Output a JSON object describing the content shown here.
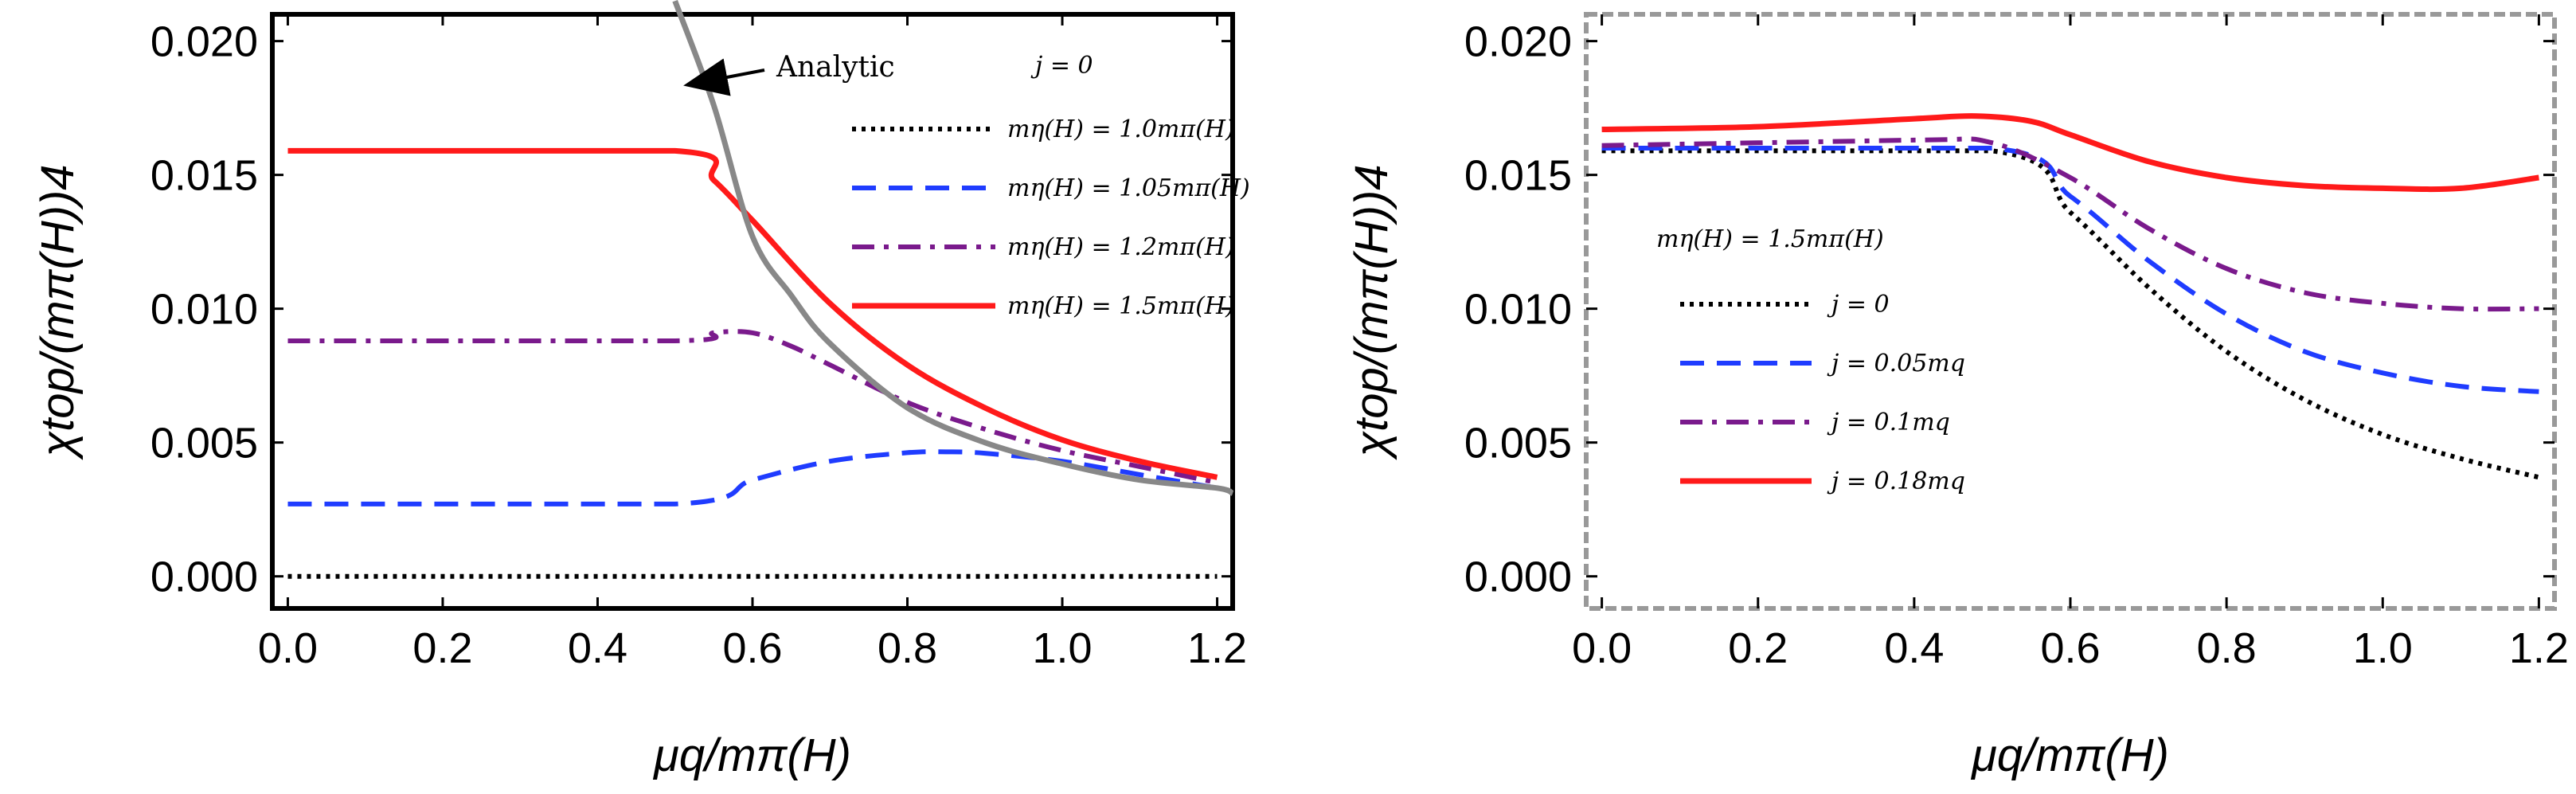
{
  "chart_data": [
    {
      "type": "line",
      "xlabel": "μq/mπ(H)",
      "ylabel": "χtop/(mπ(H))4",
      "xlim": [
        -0.02,
        1.22
      ],
      "ylim": [
        -0.0012,
        0.021
      ],
      "xticks": [
        "0.0",
        "0.2",
        "0.4",
        "0.6",
        "0.8",
        "1.0",
        "1.2"
      ],
      "yticks": [
        "0.000",
        "0.005",
        "0.010",
        "0.015",
        "0.020"
      ],
      "legend_title": "j = 0",
      "legend_position": "upper-right",
      "annotation": "Analytic",
      "series": [
        {
          "name": "mη(H) = 1.0mπ(H)",
          "color": "#000000",
          "dash": "dotted",
          "x": [
            0,
            0.5,
            1.2
          ],
          "y": [
            0.0,
            0.0,
            0.0
          ]
        },
        {
          "name": "mη(H) = 1.05mπ(H)",
          "color": "#1f3cff",
          "dash": "dashed",
          "x": [
            0,
            0.5,
            0.6,
            0.7,
            0.8,
            0.85,
            0.9,
            1.0,
            1.1,
            1.2
          ],
          "y": [
            0.0027,
            0.0027,
            0.0036,
            0.0043,
            0.00462,
            0.00465,
            0.0046,
            0.0043,
            0.0038,
            0.0033
          ]
        },
        {
          "name": "mη(H) = 1.2mπ(H)",
          "color": "#7a1a8c",
          "dash": "dashdot",
          "x": [
            0,
            0.5,
            0.55,
            0.6,
            0.65,
            0.7,
            0.8,
            0.9,
            1.0,
            1.1,
            1.2
          ],
          "y": [
            0.0088,
            0.0088,
            0.0091,
            0.0091,
            0.0086,
            0.0079,
            0.0065,
            0.0055,
            0.0047,
            0.0041,
            0.0035
          ]
        },
        {
          "name": "mη(H) = 1.5mπ(H)",
          "color": "#ff1a1a",
          "dash": "solid",
          "x": [
            0,
            0.5,
            0.55,
            0.6,
            0.7,
            0.8,
            0.9,
            1.0,
            1.1,
            1.2
          ],
          "y": [
            0.0159,
            0.0159,
            0.0148,
            0.0133,
            0.0102,
            0.0079,
            0.0063,
            0.0051,
            0.0043,
            0.0037
          ]
        },
        {
          "name": "Analytic",
          "color": "#888888",
          "dash": "solid",
          "x": [
            0.5,
            0.55,
            0.6,
            0.65,
            0.7,
            0.8,
            0.9,
            1.0,
            1.1,
            1.2,
            1.22
          ],
          "y": [
            0.0215,
            0.0176,
            0.0127,
            0.0105,
            0.0087,
            0.0063,
            0.005,
            0.0042,
            0.0036,
            0.0033,
            0.0031
          ]
        }
      ]
    },
    {
      "type": "line",
      "xlabel": "μq/mπ(H)",
      "ylabel": "χtop/(mπ(H))4",
      "xlim": [
        -0.02,
        1.22
      ],
      "ylim": [
        -0.0012,
        0.021
      ],
      "xticks": [
        "0.0",
        "0.2",
        "0.4",
        "0.6",
        "0.8",
        "1.0",
        "1.2"
      ],
      "yticks": [
        "0.000",
        "0.005",
        "0.010",
        "0.015",
        "0.020"
      ],
      "legend_title": "mη(H) = 1.5mπ(H)",
      "legend_position": "middle-left",
      "series": [
        {
          "name": "j = 0",
          "color": "#000000",
          "dash": "dotted",
          "x": [
            0,
            0.5,
            0.6,
            0.7,
            0.8,
            0.9,
            1.0,
            1.1,
            1.2
          ],
          "y": [
            0.0159,
            0.0159,
            0.0136,
            0.0108,
            0.0084,
            0.0066,
            0.0053,
            0.0044,
            0.0037
          ]
        },
        {
          "name": "j = 0.05mq",
          "color": "#1f3cff",
          "dash": "dashed",
          "x": [
            0,
            0.5,
            0.6,
            0.7,
            0.8,
            0.9,
            1.0,
            1.1,
            1.2
          ],
          "y": [
            0.016,
            0.016,
            0.0142,
            0.0118,
            0.0098,
            0.0084,
            0.0076,
            0.0071,
            0.0069
          ]
        },
        {
          "name": "j = 0.1mq",
          "color": "#7a1a8c",
          "dash": "dashdot",
          "x": [
            0,
            0.4,
            0.5,
            0.6,
            0.7,
            0.8,
            0.9,
            1.0,
            1.1,
            1.2
          ],
          "y": [
            0.0161,
            0.0163,
            0.0162,
            0.0149,
            0.013,
            0.0115,
            0.0106,
            0.0102,
            0.01,
            0.01
          ]
        },
        {
          "name": "j = 0.18mq",
          "color": "#ff1a1a",
          "dash": "solid",
          "x": [
            0,
            0.2,
            0.4,
            0.48,
            0.55,
            0.6,
            0.7,
            0.8,
            0.9,
            1.0,
            1.1,
            1.2
          ],
          "y": [
            0.0167,
            0.0168,
            0.0171,
            0.0172,
            0.017,
            0.0165,
            0.0155,
            0.0149,
            0.0146,
            0.0145,
            0.0145,
            0.0149
          ]
        }
      ]
    }
  ]
}
